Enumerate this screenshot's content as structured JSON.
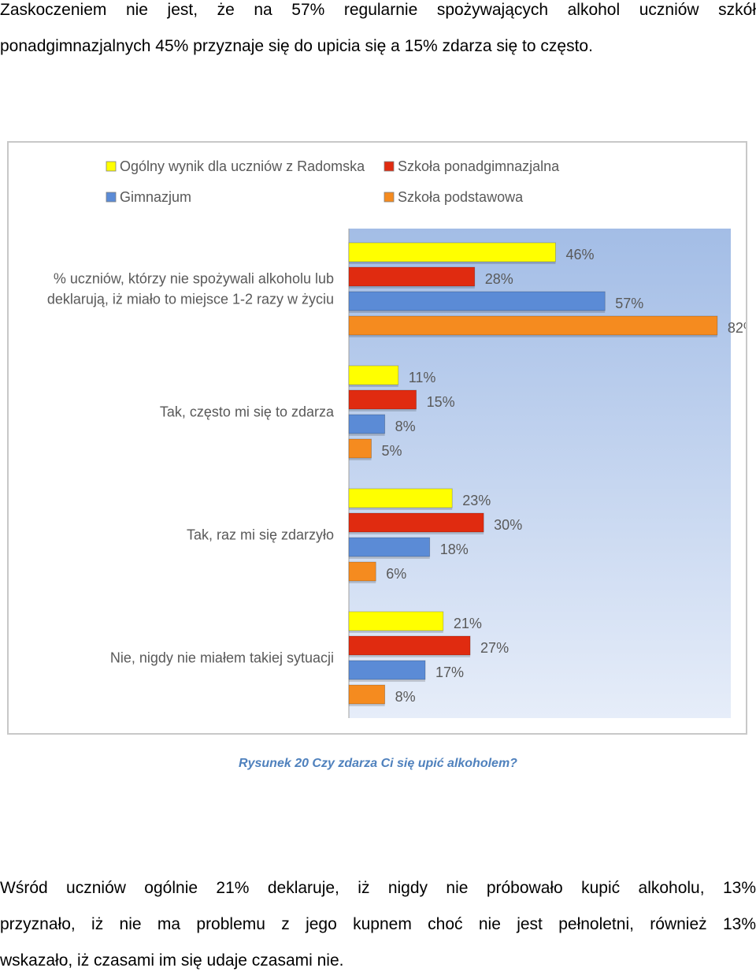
{
  "text": {
    "intro_line1": "Zaskoczeniem nie jest, że na 57% regularnie spożywających alkohol uczniów szkół",
    "intro_line2": "ponadgimnazjalnych 45% przyznaje się do upicia się a 15% zdarza się to często.",
    "caption": "Rysunek 20 Czy zdarza  Ci się upić alkoholem?",
    "outro_line1": "Wśród uczniów ogólnie 21% deklaruje, iż nigdy nie próbowało kupić alkoholu, 13%",
    "outro_line2": "przyznało, iż nie ma problemu z jego kupnem choć nie jest pełnoletni, również 13%",
    "outro_line3": "wskazało, iż czasami im się udaje czasami nie."
  },
  "chart_data": {
    "type": "bar",
    "orientation": "horizontal",
    "title": "",
    "xlabel": "",
    "ylabel": "",
    "xlim": [
      0,
      85
    ],
    "grid": false,
    "legend_position": "top",
    "value_suffix": "%",
    "categories": [
      [
        "% uczniów, którzy nie spożywali alkoholu lub",
        "deklarują, iż miało to miejsce 1-2 razy w życiu"
      ],
      [
        "Tak, często mi się to zdarza"
      ],
      [
        "Tak, raz mi się zdarzyło"
      ],
      [
        "Nie, nigdy nie miałem takiej sytuacji"
      ]
    ],
    "series": [
      {
        "name": "Ogólny wynik dla uczniów z Radomska",
        "color": "#ffff00",
        "values": [
          46,
          11,
          23,
          21
        ]
      },
      {
        "name": "Szkoła ponadgimnazjalna",
        "color": "#e02b10",
        "values": [
          28,
          15,
          30,
          27
        ]
      },
      {
        "name": "Gimnazjum",
        "color": "#5b8bd6",
        "values": [
          57,
          8,
          18,
          17
        ]
      },
      {
        "name": "Szkoła podstawowa",
        "color": "#f58b1f",
        "values": [
          82,
          5,
          6,
          8
        ]
      }
    ]
  }
}
